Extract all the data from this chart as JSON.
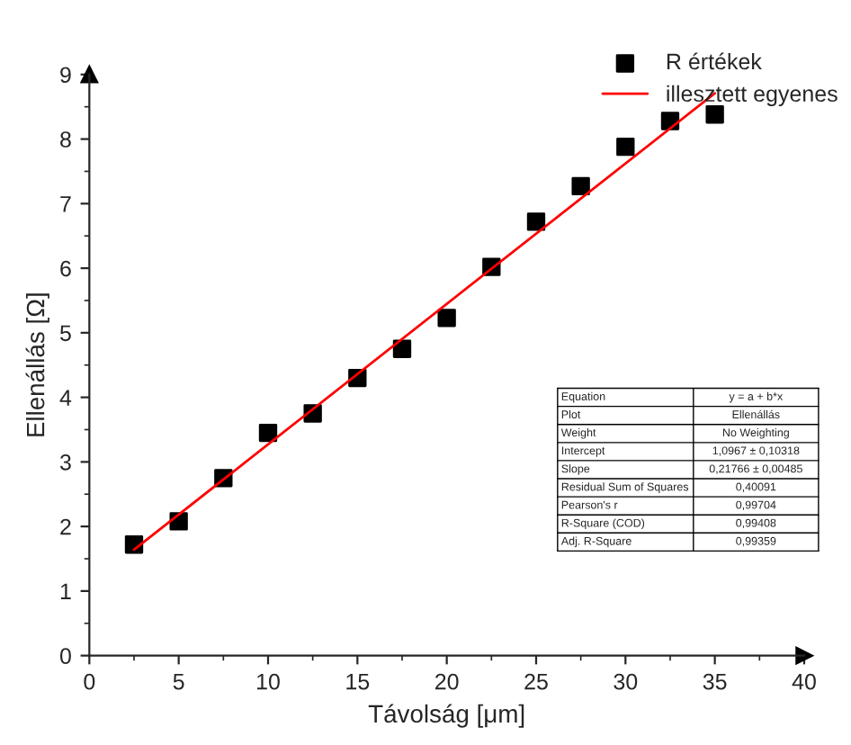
{
  "chart_data": {
    "type": "scatter",
    "xlabel": "Távolság [μm]",
    "ylabel": "Ellenállás [Ω]",
    "xlim": [
      0,
      40
    ],
    "xticks": [
      0,
      5,
      10,
      15,
      20,
      25,
      30,
      35,
      40
    ],
    "ylim": [
      0,
      9
    ],
    "yticks": [
      0,
      1,
      2,
      3,
      4,
      5,
      6,
      7,
      8,
      9
    ],
    "grid": false,
    "legend": "top right",
    "series": [
      {
        "name": "R értékek",
        "marker": "square",
        "color": "#000000",
        "x": [
          2.5,
          5,
          7.5,
          10,
          12.5,
          15,
          17.5,
          20,
          22.5,
          25,
          27.5,
          30,
          32.5,
          35
        ],
        "values": [
          1.72,
          2.08,
          2.75,
          3.45,
          3.75,
          4.3,
          4.75,
          5.23,
          6.02,
          6.72,
          7.27,
          7.88,
          8.28,
          8.38
        ]
      },
      {
        "name": "illesztett egyenes",
        "type": "line",
        "marker": "none",
        "line_style": "solid",
        "color": "#ff0000",
        "x": [
          2.5,
          35
        ],
        "values": [
          1.64,
          8.71
        ]
      }
    ],
    "annotations": [
      "Equation",
      "y = a + b*x",
      "Plot",
      "Ellenállás",
      "Weight",
      "No Weighting",
      "Intercept",
      "1,0967 ± 0,10318",
      "Slope",
      "0,21766 ± 0,00485",
      "Residual Sum of Squares",
      "0,40091",
      "Pearson's r",
      "0,99704",
      "R-Square (COD)",
      "0,99408",
      "Adj. R-Square",
      "0,99359"
    ]
  }
}
